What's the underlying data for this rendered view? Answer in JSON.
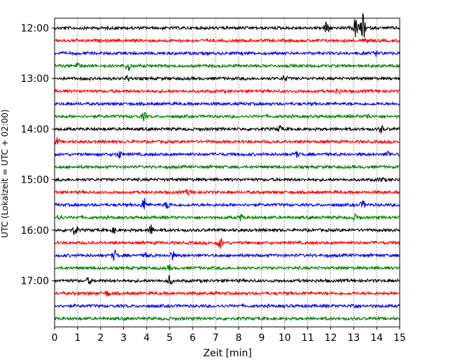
{
  "chart_data": {
    "type": "line",
    "xlabel": "Zeit  [min]",
    "ylabel": "UTC (Lokalzeit = UTC + 02:00)",
    "xlim": [
      0,
      15
    ],
    "x_ticks": [
      "0",
      "1",
      "2",
      "3",
      "4",
      "5",
      "6",
      "7",
      "8",
      "9",
      "10",
      "11",
      "12",
      "13",
      "14",
      "15"
    ],
    "y_ticks": [
      "12:00",
      "13:00",
      "14:00",
      "15:00",
      "16:00",
      "17:00"
    ],
    "grid": "vertical dotted",
    "trace_interval_min": 15,
    "color_cycle": [
      "#000000",
      "#ff0000",
      "#0000ff",
      "#008000"
    ],
    "traces": [
      {
        "start": "12:00",
        "events": [
          {
            "t": 11.85,
            "a": 1.0
          },
          {
            "t": 13.1,
            "a": 1.2
          },
          {
            "t": 13.4,
            "a": 1.6
          }
        ]
      },
      {
        "start": "12:15",
        "events": [
          {
            "t": 13.6,
            "a": 0.3
          }
        ]
      },
      {
        "start": "12:30",
        "events": [
          {
            "t": 14.0,
            "a": 0.25
          }
        ]
      },
      {
        "start": "12:45",
        "events": [
          {
            "t": 1.0,
            "a": 0.3
          },
          {
            "t": 3.2,
            "a": 0.6
          }
        ]
      },
      {
        "start": "13:00",
        "events": [
          {
            "t": 3.2,
            "a": 0.3
          },
          {
            "t": 10.0,
            "a": 0.35
          }
        ]
      },
      {
        "start": "13:15",
        "events": [
          {
            "t": 12.3,
            "a": 0.3
          }
        ]
      },
      {
        "start": "13:30",
        "events": []
      },
      {
        "start": "13:45",
        "events": [
          {
            "t": 3.9,
            "a": 0.4
          },
          {
            "t": 13.6,
            "a": 0.25
          }
        ]
      },
      {
        "start": "14:00",
        "events": [
          {
            "t": 9.8,
            "a": 0.35
          },
          {
            "t": 14.2,
            "a": 0.35
          }
        ]
      },
      {
        "start": "14:15",
        "events": [
          {
            "t": 0.1,
            "a": 0.4
          }
        ]
      },
      {
        "start": "14:30",
        "events": [
          {
            "t": 2.8,
            "a": 0.4
          },
          {
            "t": 10.5,
            "a": 0.3
          },
          {
            "t": 14.5,
            "a": 0.35
          }
        ]
      },
      {
        "start": "14:45",
        "events": []
      },
      {
        "start": "15:00",
        "events": [
          {
            "t": 14.2,
            "a": 0.25
          }
        ]
      },
      {
        "start": "15:15",
        "events": [
          {
            "t": 5.8,
            "a": 0.3
          }
        ]
      },
      {
        "start": "15:30",
        "events": [
          {
            "t": 3.9,
            "a": 0.8
          },
          {
            "t": 4.9,
            "a": 0.4
          },
          {
            "t": 13.4,
            "a": 0.4
          }
        ]
      },
      {
        "start": "15:45",
        "events": [
          {
            "t": 0.2,
            "a": 0.35
          },
          {
            "t": 8.1,
            "a": 0.35
          },
          {
            "t": 13.1,
            "a": 0.3
          }
        ]
      },
      {
        "start": "16:00",
        "events": [
          {
            "t": 0.9,
            "a": 0.6
          },
          {
            "t": 4.2,
            "a": 0.6
          },
          {
            "t": 2.6,
            "a": 0.3
          }
        ]
      },
      {
        "start": "16:15",
        "events": [
          {
            "t": 7.2,
            "a": 0.6
          }
        ]
      },
      {
        "start": "16:30",
        "events": [
          {
            "t": 2.6,
            "a": 0.6
          },
          {
            "t": 5.1,
            "a": 0.5
          },
          {
            "t": 4.0,
            "a": 0.3
          }
        ]
      },
      {
        "start": "16:45",
        "events": [
          {
            "t": 5.0,
            "a": 0.25
          }
        ]
      },
      {
        "start": "17:00",
        "events": [
          {
            "t": 1.5,
            "a": 0.35
          },
          {
            "t": 5.0,
            "a": 0.5
          }
        ]
      },
      {
        "start": "17:15",
        "events": [
          {
            "t": 2.3,
            "a": 0.3
          }
        ]
      },
      {
        "start": "17:30",
        "events": [
          {
            "t": 13.0,
            "a": 0.3
          }
        ]
      },
      {
        "start": "17:45",
        "events": []
      }
    ]
  }
}
